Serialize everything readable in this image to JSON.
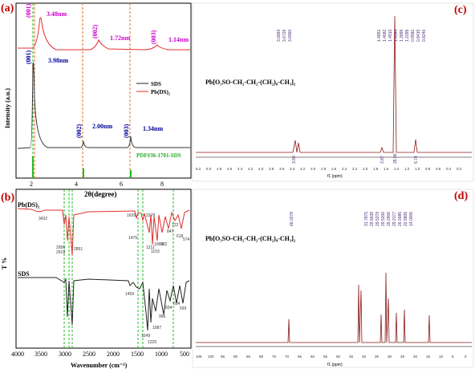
{
  "panels": {
    "a": {
      "label": "(a)",
      "xlabel": "2θ(degree)",
      "ylabel": "Intensity (a.u.)",
      "xticks": [
        "2",
        "4",
        "6",
        "8"
      ],
      "legend": [
        "SDS",
        "Pb(DS)₂"
      ],
      "pdf": "PDF#36-1701-SDS",
      "ann_pb": [
        {
          "hkl": "(001)",
          "d": "3.48nm"
        },
        {
          "hkl": "(002)",
          "d": "1.72nm"
        },
        {
          "hkl": "(003)",
          "d": "1.14nm"
        }
      ],
      "ann_sds": [
        {
          "hkl": "(001)",
          "d": "3.98nm"
        },
        {
          "hkl": "(002)",
          "d": "2.00nm"
        },
        {
          "hkl": "(003)",
          "d": "1.34nm"
        }
      ]
    },
    "b": {
      "label": "(b)",
      "xlabel": "Wavenumber (cm⁻¹)",
      "ylabel": "T %",
      "xticks": [
        "4000",
        "3500",
        "3000",
        "2500",
        "2000",
        "1500",
        "1000",
        "500"
      ],
      "series": [
        "Pb(DS)₂",
        "SDS"
      ],
      "pb_peaks": [
        "3432",
        "2956",
        "2919",
        "2851",
        "1629",
        "1578",
        "1475",
        "1211",
        "1153",
        "1065",
        "982",
        "847",
        "722",
        "618",
        "574"
      ],
      "sds_peaks": [
        "1459",
        "1249",
        "1220",
        "1087",
        "996",
        "834",
        "634",
        "593"
      ]
    },
    "c": {
      "label": "(c)",
      "formula": "Pb[O₃SO-CH₂-CH₂-(CH₂)₉-CH₃]₂",
      "shifts": [
        "3.6893",
        "3.6726",
        "3.6560",
        "1.4851",
        "1.4682",
        "1.4510",
        "1.4344",
        "1.2899",
        "1.2295",
        "0.8581",
        "0.8415",
        "0.8240"
      ],
      "integrals": [
        "3.80",
        "3.87",
        "28.00",
        "5.74"
      ],
      "xticks": [
        "5.2",
        "5.0",
        "4.8",
        "4.6",
        "4.4",
        "4.2",
        "4.0",
        "3.8",
        "3.6",
        "3.4",
        "3.2",
        "3.0",
        "2.8",
        "2.6",
        "2.4",
        "2.2",
        "2.0",
        "1.8",
        "1.6",
        "1.4",
        "1.2",
        "1.0",
        "0.8",
        "0.6",
        "0.4",
        "0.2"
      ],
      "xunit": "f1 (ppm)"
    },
    "d": {
      "label": "(d)",
      "formula": "Pb[O₃SO-CH₂-CH₂-(CH₂)₉-CH₃]₂",
      "shifts_left": [
        "66.0278"
      ],
      "shifts_right": [
        "31.7875",
        "29.5638",
        "29.5379",
        "29.5200",
        "29.2906",
        "29.2177",
        "26.0085",
        "22.5805",
        "14.0005"
      ],
      "xticks": [
        "105",
        "100",
        "95",
        "90",
        "85",
        "80",
        "75",
        "70",
        "65",
        "60",
        "55",
        "50",
        "45",
        "40",
        "35",
        "30",
        "25",
        "20",
        "15",
        "10",
        "5",
        "0"
      ],
      "xunit": "f1 (ppm)"
    }
  },
  "colors": {
    "pb": "#e03030",
    "sds": "#222222",
    "green": "#22bb22",
    "orange": "#e07020",
    "magenta": "#cc00cc",
    "blue": "#000099",
    "nmr": "#8b1a1a"
  }
}
